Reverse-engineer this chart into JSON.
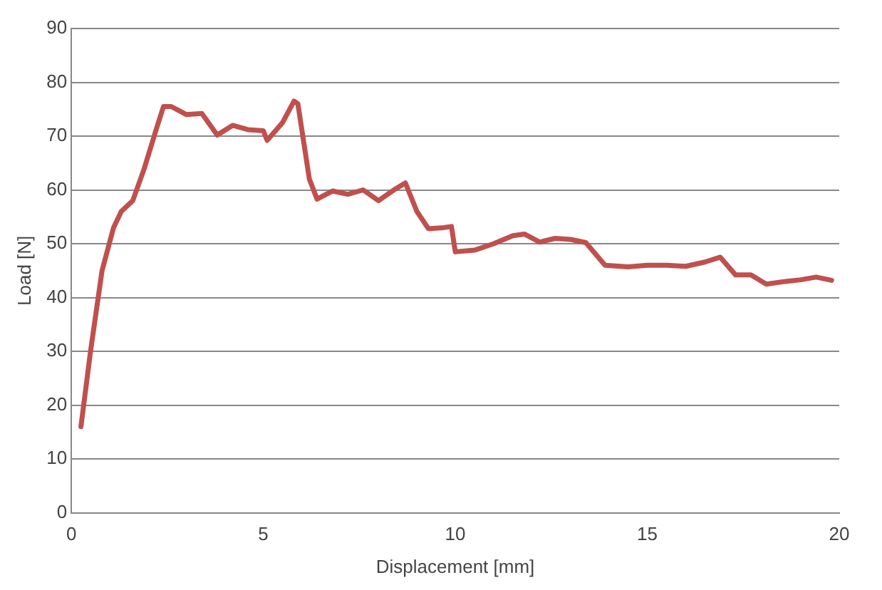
{
  "chart_data": {
    "type": "line",
    "xlabel": "Displacement [mm]",
    "ylabel": "Load [N]",
    "xlim": [
      0,
      20
    ],
    "xticks": [
      0,
      5,
      10,
      15,
      20
    ],
    "ylim": [
      0,
      90
    ],
    "yticks": [
      0,
      10,
      20,
      30,
      40,
      50,
      60,
      70,
      80,
      90
    ],
    "grid": "y",
    "legend": false,
    "marker": "none",
    "line_style": "solid",
    "series": [
      {
        "color": "#c0504d",
        "x": [
          0.25,
          0.5,
          0.8,
          1.1,
          1.3,
          1.6,
          1.9,
          2.2,
          2.4,
          2.6,
          3.0,
          3.4,
          3.8,
          4.2,
          4.6,
          5.0,
          5.1,
          5.5,
          5.8,
          5.9,
          6.2,
          6.4,
          6.8,
          7.2,
          7.6,
          8.0,
          8.4,
          8.7,
          9.0,
          9.3,
          9.7,
          9.9,
          10.0,
          10.5,
          11.0,
          11.5,
          11.8,
          12.2,
          12.6,
          13.0,
          13.4,
          13.9,
          14.5,
          15.0,
          15.5,
          16.0,
          16.5,
          16.9,
          17.3,
          17.7,
          18.1,
          18.6,
          19.0,
          19.4,
          19.8
        ],
        "values": [
          16,
          30,
          45,
          53,
          56,
          58,
          64,
          71,
          75.5,
          75.5,
          74,
          74.2,
          70.2,
          72,
          71.2,
          71,
          69.2,
          72.5,
          76.5,
          76,
          62,
          58.3,
          59.8,
          59.2,
          60,
          58,
          60,
          61.3,
          56,
          52.8,
          53,
          53.2,
          48.5,
          48.8,
          50,
          51.5,
          51.8,
          50.3,
          51,
          50.8,
          50.2,
          46,
          45.7,
          46,
          46,
          45.8,
          46.6,
          47.5,
          44.2,
          44.2,
          42.5,
          43,
          43.3,
          43.8,
          43.2
        ]
      }
    ]
  }
}
